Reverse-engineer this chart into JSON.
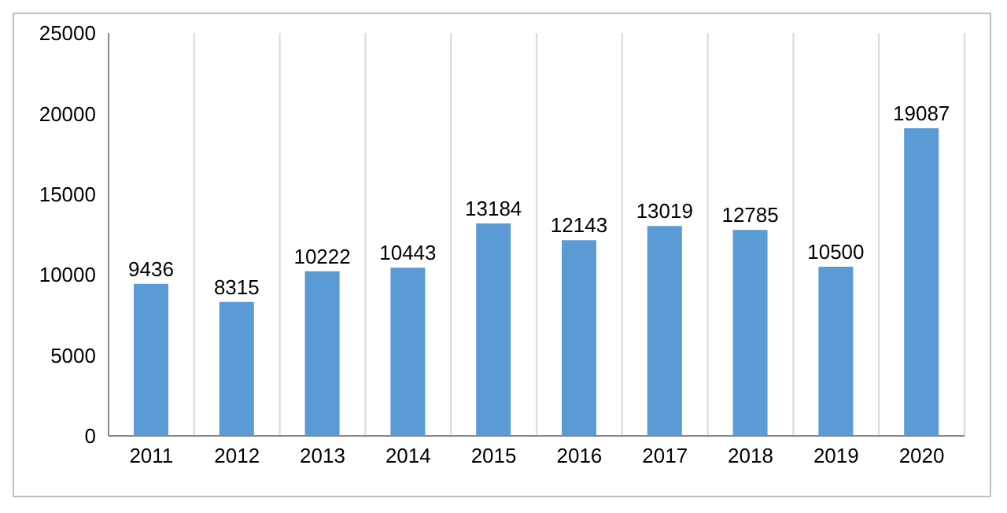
{
  "chart_data": {
    "type": "bar",
    "categories": [
      "2011",
      "2012",
      "2013",
      "2014",
      "2015",
      "2016",
      "2017",
      "2018",
      "2019",
      "2020"
    ],
    "values": [
      9436,
      8315,
      10222,
      10443,
      13184,
      12143,
      13019,
      12785,
      10500,
      19087
    ],
    "color": "#5b9bd5",
    "ylim": [
      0,
      25000
    ],
    "yticks": [
      0,
      5000,
      10000,
      15000,
      20000,
      25000
    ],
    "grid": "x",
    "data_labels": true
  }
}
